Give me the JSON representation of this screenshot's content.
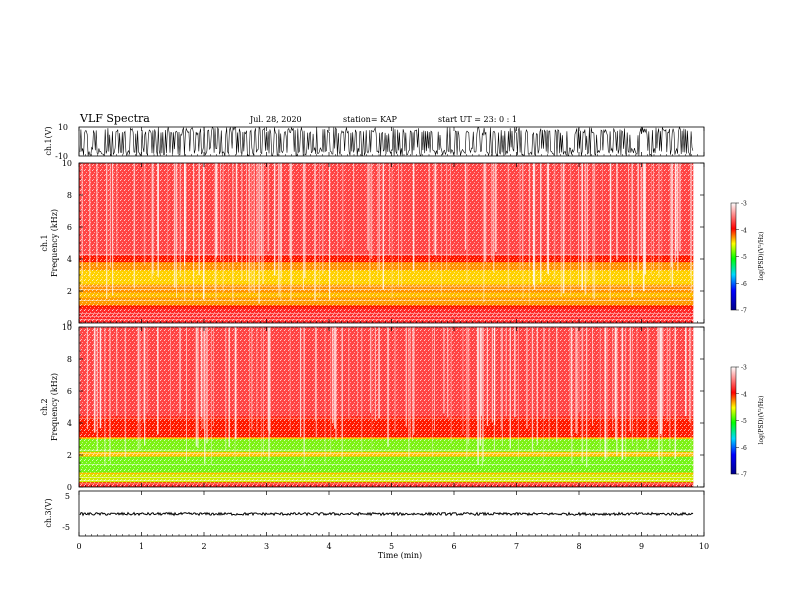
{
  "header": {
    "title": "VLF Spectra",
    "date": "Jul. 28, 2020",
    "station": "station= KAP",
    "start": "start UT =  23: 0 : 1"
  },
  "chart_data": [
    {
      "type": "line",
      "panel": "ch1-waveform",
      "ylabel": "ch.1(V)",
      "ylim": [
        -10,
        10
      ],
      "yticks": [
        "10",
        "-10"
      ],
      "xlim": [
        0,
        10
      ],
      "data_extent": [
        0,
        9.83
      ],
      "series": [
        {
          "y_range_approx": [
            -10,
            10
          ]
        }
      ]
    },
    {
      "type": "heatmap",
      "panel": "ch1-spectrogram",
      "ylabel_line1": "ch.1",
      "ylabel_line2": "Frequency (kHz)",
      "ylim": [
        0,
        10
      ],
      "yticks": [
        "0",
        "2",
        "4",
        "6",
        "8",
        "10"
      ],
      "xlim": [
        0,
        10
      ],
      "colorbar": {
        "label": "log(PSD)(V²/Hz)",
        "range": [
          -7,
          -3
        ],
        "ticks": [
          "-3",
          "-4",
          "-5",
          "-6",
          "-7"
        ]
      }
    },
    {
      "type": "heatmap",
      "panel": "ch2-spectrogram",
      "ylabel_line1": "ch.2",
      "ylabel_line2": "Frequency (kHz)",
      "ylim": [
        0,
        10
      ],
      "yticks": [
        "0",
        "2",
        "4",
        "6",
        "8",
        "10"
      ],
      "xlim": [
        0,
        10
      ],
      "colorbar": {
        "label": "log(PSD)(V²/Hz)",
        "range": [
          -7,
          -3
        ],
        "ticks": [
          "-3",
          "-4",
          "-5",
          "-6",
          "-7"
        ]
      }
    },
    {
      "type": "line",
      "panel": "ch3-waveform",
      "ylabel": "ch.3(V)",
      "ylim": [
        -5,
        5
      ],
      "yticks": [
        "5",
        "-5"
      ],
      "xlim": [
        0,
        10
      ],
      "data_extent": [
        0,
        9.83
      ],
      "series": [
        {
          "y_range_approx": [
            -0.4,
            0.2
          ]
        }
      ]
    }
  ],
  "xaxis": {
    "label": "Time (min)",
    "ticks": [
      "0",
      "1",
      "2",
      "3",
      "4",
      "5",
      "6",
      "7",
      "8",
      "9",
      "10"
    ]
  }
}
